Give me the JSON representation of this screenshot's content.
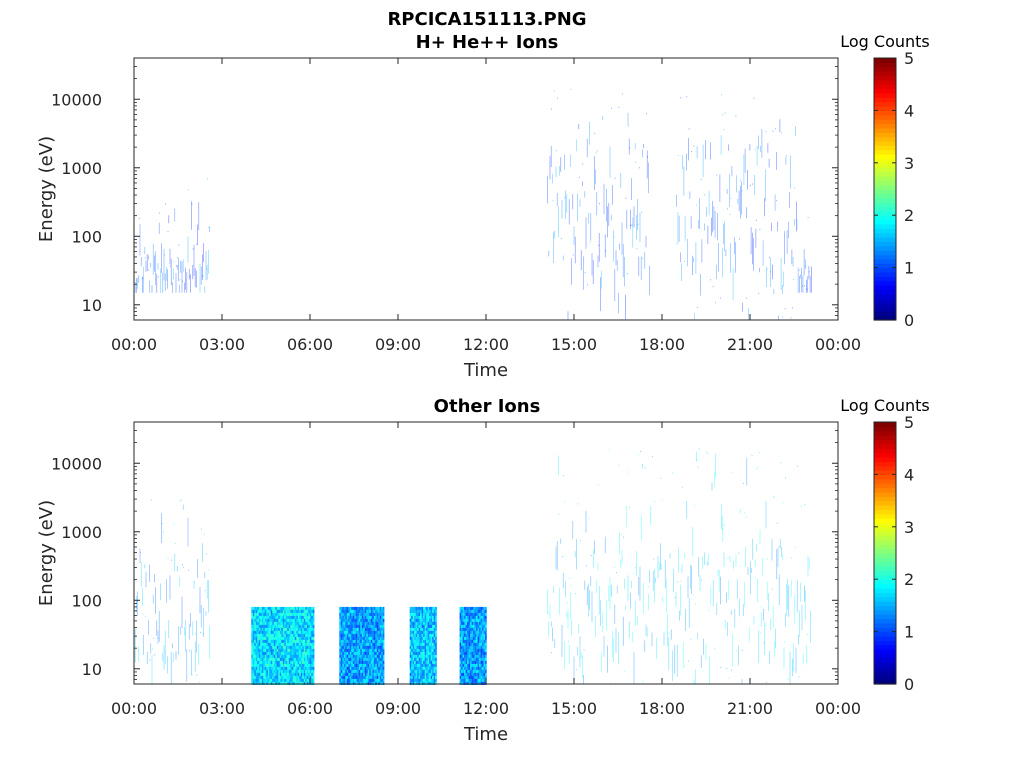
{
  "figure": {
    "title": "RPCICA151113.PNG"
  },
  "colors": {
    "jet": [
      "#00007f",
      "#0000ff",
      "#007fff",
      "#00ffff",
      "#7fff7f",
      "#ffff00",
      "#ff7f00",
      "#ff0000",
      "#7f0000"
    ],
    "axis": "#262626"
  },
  "icons": [],
  "chart_data": [
    {
      "type": "heatmap",
      "title": "H+ He++ Ions",
      "xlabel": "Time",
      "ylabel": "Energy (eV)",
      "x_ticks": [
        "00:00",
        "03:00",
        "06:00",
        "09:00",
        "12:00",
        "15:00",
        "18:00",
        "21:00",
        "00:00"
      ],
      "xlim_hours": [
        0,
        24
      ],
      "y_scale": "log",
      "y_ticks": [
        "10",
        "100",
        "1000",
        "10000"
      ],
      "ylim_eV": [
        6,
        40000
      ],
      "colorbar": {
        "label": "Log Counts",
        "ticks": [
          "0",
          "1",
          "2",
          "3",
          "4",
          "5"
        ],
        "range": [
          0,
          5
        ],
        "colormap": "jet"
      },
      "segments": [
        {
          "t0": 0.0,
          "t1": 2.6,
          "e_min": 15,
          "e_max": 800,
          "e_core_min": 18,
          "e_core_max": 80,
          "level": 0.2
        },
        {
          "t0": 14.1,
          "t1": 17.6,
          "e_min": 6,
          "e_max": 15000,
          "e_core_min": 30,
          "e_core_max": 3000,
          "level": 0.25
        },
        {
          "t0": 18.5,
          "t1": 22.6,
          "e_min": 6,
          "e_max": 15000,
          "e_core_min": 30,
          "e_core_max": 3000,
          "level": 0.25
        },
        {
          "t0": 22.6,
          "t1": 23.1,
          "e_min": 15,
          "e_max": 200,
          "e_core_min": 20,
          "e_core_max": 60,
          "level": 0.2
        }
      ]
    },
    {
      "type": "heatmap",
      "title": "Other Ions",
      "xlabel": "Time",
      "ylabel": "Energy (eV)",
      "x_ticks": [
        "00:00",
        "03:00",
        "06:00",
        "09:00",
        "12:00",
        "15:00",
        "18:00",
        "21:00",
        "00:00"
      ],
      "xlim_hours": [
        0,
        24
      ],
      "y_scale": "log",
      "y_ticks": [
        "10",
        "100",
        "1000",
        "10000"
      ],
      "ylim_eV": [
        6,
        40000
      ],
      "colorbar": {
        "label": "Log Counts",
        "ticks": [
          "0",
          "1",
          "2",
          "3",
          "4",
          "5"
        ],
        "range": [
          0,
          5
        ],
        "colormap": "jet"
      },
      "segments": [
        {
          "t0": 0.0,
          "t1": 2.6,
          "e_min": 6,
          "e_max": 3000,
          "e_core_min": 15,
          "e_core_max": 600,
          "level": 0.5
        },
        {
          "t0": 4.0,
          "t1": 6.1,
          "e_min": 6,
          "e_max": 80,
          "e_core_min": 6,
          "e_core_max": 80,
          "level": 1.2,
          "solid": true
        },
        {
          "t0": 7.0,
          "t1": 8.5,
          "e_min": 6,
          "e_max": 80,
          "e_core_min": 6,
          "e_core_max": 80,
          "level": 0.9,
          "solid": true
        },
        {
          "t0": 9.4,
          "t1": 10.3,
          "e_min": 6,
          "e_max": 80,
          "e_core_min": 6,
          "e_core_max": 80,
          "level": 1.1,
          "solid": true
        },
        {
          "t0": 11.1,
          "t1": 12.0,
          "e_min": 6,
          "e_max": 80,
          "e_core_min": 6,
          "e_core_max": 80,
          "level": 0.9,
          "solid": true
        },
        {
          "t0": 14.1,
          "t1": 23.1,
          "e_min": 6,
          "e_max": 20000,
          "e_core_min": 15,
          "e_core_max": 800,
          "level": 0.7
        }
      ]
    }
  ]
}
